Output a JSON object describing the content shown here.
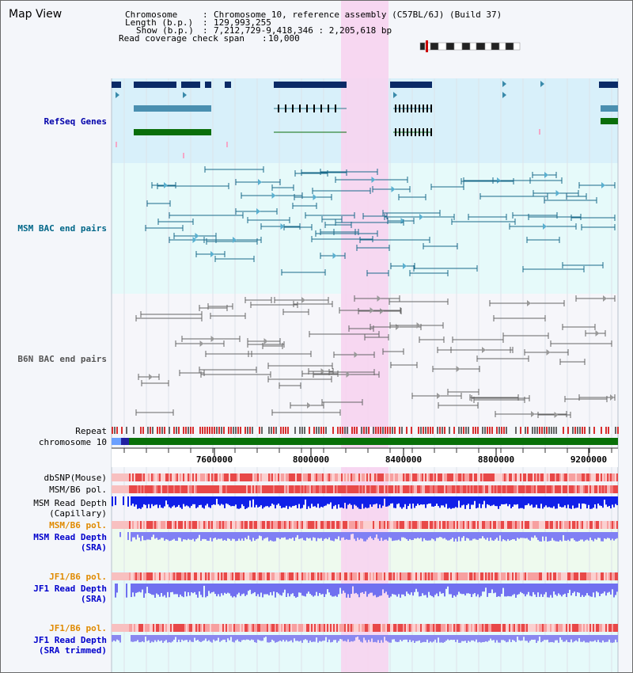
{
  "view": {
    "title": "Map View"
  },
  "chromosome_info": {
    "chromosome_label": "Chromosome",
    "chromosome_value": "Chromosome 10, reference assembly (C57BL/6J) (Build 37)",
    "length_label": "Length (b.p.)",
    "length_value": "129,993,255",
    "show_label": "Show (b.p.)",
    "show_value": "7,212,729-9,418,346 : 2,205,618 bp",
    "coverage_label": "Read coverage check span",
    "coverage_value": "10,000"
  },
  "tracks": {
    "refseq": {
      "label": "RefSeq Genes",
      "color": "#0000aa"
    },
    "msm_bac": {
      "label": "MSM BAC end pairs",
      "color": "#006688"
    },
    "b6n_bac": {
      "label": "B6N BAC end pairs",
      "color": "#555555"
    },
    "repeat": {
      "label": "Repeat"
    },
    "chromosome": {
      "label": "chromosome 10"
    },
    "dbsnp": {
      "label": "dbSNP(Mouse)"
    },
    "msm_b6_pol": {
      "label": "MSM/B6 pol."
    },
    "msm_read_depth_cap": {
      "line1": "MSM Read Depth",
      "line2": "(Capillary)"
    },
    "msm_b6_pol_sra": {
      "label": "MSM/B6 pol.",
      "color": "#e08a00"
    },
    "msm_read_depth_sra": {
      "line1": "MSM Read Depth",
      "line2": "(SRA)",
      "color": "#0000cc"
    },
    "jf1_b6_pol": {
      "label": "JF1/B6 pol.",
      "color": "#e08a00"
    },
    "jf1_read_depth": {
      "line1": "JF1 Read Depth",
      "line2": "(SRA)",
      "color": "#0000cc"
    },
    "jf1_b6_pol_trim": {
      "label": "JF1/B6 pol.",
      "color": "#e08a00"
    },
    "jf1_read_depth_trim": {
      "line1": "JF1 Read Depth",
      "line2": "(SRA trimmed)",
      "color": "#0000cc"
    }
  },
  "axis": {
    "ticks": [
      "7600000",
      "8000000",
      "8400000",
      "8800000",
      "9200000"
    ]
  },
  "highlight": {
    "color": "#f7d4f0"
  }
}
